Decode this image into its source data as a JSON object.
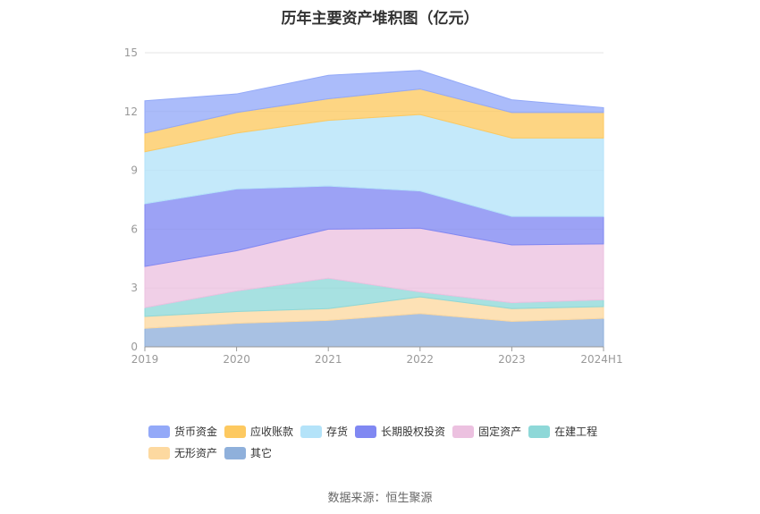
{
  "chart_data": {
    "type": "area",
    "title": "历年主要资产堆积图（亿元）",
    "categories": [
      "2019",
      "2020",
      "2021",
      "2022",
      "2023",
      "2024H1"
    ],
    "y_ticks": [
      "0",
      "3",
      "6",
      "9",
      "12",
      "15"
    ],
    "ylim": [
      0,
      15
    ],
    "stacked": true,
    "grid": true,
    "legend_position": "bottom",
    "series": [
      {
        "name": "其它",
        "color": "#8fb0db",
        "values": [
          0.95,
          1.2,
          1.35,
          1.7,
          1.3,
          1.45
        ]
      },
      {
        "name": "无形资产",
        "color": "#fdd9a0",
        "values": [
          0.6,
          0.6,
          0.6,
          0.85,
          0.65,
          0.6
        ]
      },
      {
        "name": "在建工程",
        "color": "#8ed8d8",
        "values": [
          0.45,
          1.05,
          1.55,
          0.25,
          0.3,
          0.35
        ]
      },
      {
        "name": "固定资产",
        "color": "#ecc1e0",
        "values": [
          2.1,
          2.05,
          2.5,
          3.25,
          2.95,
          2.85
        ]
      },
      {
        "name": "长期股权投资",
        "color": "#8088f2",
        "values": [
          3.2,
          3.15,
          2.2,
          1.9,
          1.45,
          1.4
        ]
      },
      {
        "name": "存货",
        "color": "#b4e3f9",
        "values": [
          2.65,
          2.85,
          3.35,
          3.9,
          4.0,
          4.0
        ]
      },
      {
        "name": "应收账款",
        "color": "#fdc960",
        "values": [
          0.95,
          1.05,
          1.1,
          1.3,
          1.3,
          1.3
        ]
      },
      {
        "name": "货币资金",
        "color": "#93a9f8",
        "values": [
          1.65,
          0.95,
          1.2,
          0.95,
          0.65,
          0.25
        ]
      }
    ],
    "legend_order": [
      "货币资金",
      "应收账款",
      "存货",
      "长期股权投资",
      "固定资产",
      "在建工程",
      "无形资产",
      "其它"
    ]
  },
  "footer": {
    "source": "数据来源：恒生聚源"
  }
}
